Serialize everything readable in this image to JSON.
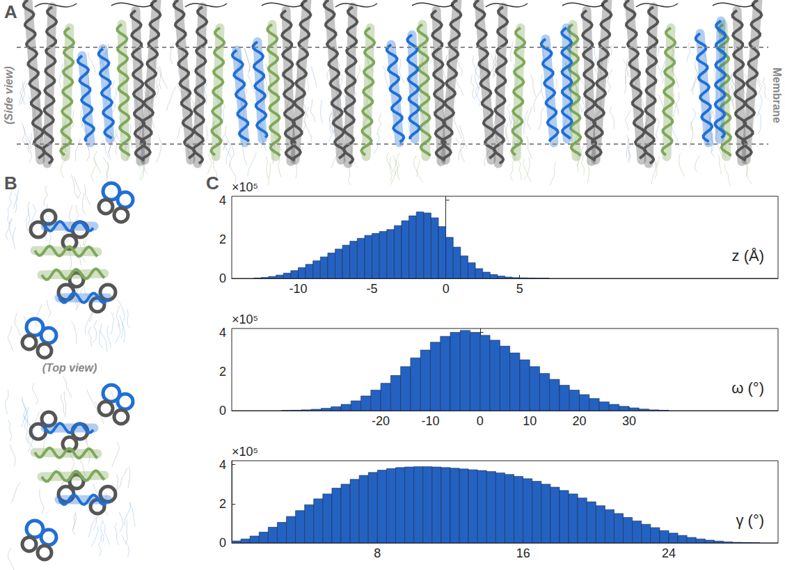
{
  "panels": {
    "A": {
      "label": "A",
      "side_view": "(Side view)",
      "membrane": "Membrane"
    },
    "B": {
      "label": "B",
      "top_view": "(Top view)"
    },
    "C": {
      "label": "C"
    }
  },
  "chart_data": [
    {
      "type": "histogram",
      "xlabel": "z (Å)",
      "y_scale_label": "×10⁵",
      "color": "#2462c2",
      "bins": [
        -13,
        -12.5,
        -12,
        -11.5,
        -11,
        -10.5,
        -10,
        -9.5,
        -9,
        -8.5,
        -8,
        -7.5,
        -7,
        -6.5,
        -6,
        -5.5,
        -5,
        -4.5,
        -4,
        -3.5,
        -3,
        -2.5,
        -2,
        -1.5,
        -1,
        -0.5,
        0,
        0.5,
        1,
        1.5,
        2,
        2.5,
        3,
        3.5,
        4,
        4.5,
        5,
        5.5,
        6,
        6.5,
        7
      ],
      "counts": [
        0.02,
        0.05,
        0.1,
        0.17,
        0.27,
        0.4,
        0.55,
        0.72,
        0.9,
        1.1,
        1.3,
        1.5,
        1.7,
        1.9,
        2.05,
        2.2,
        2.3,
        2.4,
        2.5,
        2.7,
        2.95,
        3.2,
        3.4,
        3.35,
        3.1,
        2.65,
        2.1,
        1.6,
        1.15,
        0.8,
        0.5,
        0.32,
        0.2,
        0.12,
        0.07,
        0.04,
        0.03,
        0.02,
        0.01,
        0.01
      ],
      "xlim": [
        -14.5,
        22.5
      ],
      "xticks": [
        -10,
        -5,
        0,
        5
      ],
      "ylim": [
        0,
        4.2
      ],
      "yticks": [
        0,
        2,
        4
      ],
      "grid": false
    },
    {
      "type": "histogram",
      "xlabel": "ω (°)",
      "y_scale_label": "×10⁵",
      "color": "#2462c2",
      "bins": [
        -40,
        -38,
        -36,
        -34,
        -32,
        -30,
        -28,
        -26,
        -24,
        -22,
        -20,
        -18,
        -16,
        -14,
        -12,
        -10,
        -8,
        -6,
        -4,
        -2,
        0,
        2,
        4,
        6,
        8,
        10,
        12,
        14,
        16,
        18,
        20,
        22,
        24,
        26,
        28,
        30,
        32,
        34,
        36,
        38
      ],
      "counts": [
        0.01,
        0.02,
        0.04,
        0.07,
        0.12,
        0.2,
        0.32,
        0.5,
        0.75,
        1.05,
        1.4,
        1.8,
        2.25,
        2.7,
        3.1,
        3.5,
        3.8,
        4.0,
        4.1,
        4.0,
        3.85,
        3.6,
        3.3,
        2.95,
        2.6,
        2.25,
        1.9,
        1.6,
        1.3,
        1.05,
        0.82,
        0.62,
        0.45,
        0.32,
        0.22,
        0.14,
        0.08,
        0.04,
        0.02
      ],
      "xlim": [
        -50,
        60
      ],
      "xticks": [
        -20,
        -10,
        0,
        10,
        20,
        30
      ],
      "ylim": [
        0,
        4.2
      ],
      "yticks": [
        0,
        2,
        4
      ],
      "grid": false
    },
    {
      "type": "histogram",
      "xlabel": "γ (°)",
      "y_scale_label": "×10⁵",
      "color": "#2462c2",
      "bins": [
        0,
        0.5,
        1,
        1.5,
        2,
        2.5,
        3,
        3.5,
        4,
        4.5,
        5,
        5.5,
        6,
        6.5,
        7,
        7.5,
        8,
        8.5,
        9,
        9.5,
        10,
        10.5,
        11,
        11.5,
        12,
        12.5,
        13,
        13.5,
        14,
        14.5,
        15,
        15.5,
        16,
        16.5,
        17,
        17.5,
        18,
        18.5,
        19,
        19.5,
        20,
        20.5,
        21,
        21.5,
        22,
        22.5,
        23,
        23.5,
        24,
        24.5,
        25,
        25.5,
        26,
        26.5,
        27,
        27.5,
        28,
        28.5,
        29
      ],
      "counts": [
        0.1,
        0.2,
        0.35,
        0.55,
        0.8,
        1.05,
        1.35,
        1.65,
        1.95,
        2.25,
        2.5,
        2.8,
        3.0,
        3.25,
        3.45,
        3.6,
        3.72,
        3.8,
        3.85,
        3.88,
        3.9,
        3.9,
        3.88,
        3.85,
        3.82,
        3.78,
        3.74,
        3.7,
        3.65,
        3.58,
        3.5,
        3.4,
        3.28,
        3.15,
        3.0,
        2.85,
        2.68,
        2.5,
        2.3,
        2.1,
        1.9,
        1.7,
        1.5,
        1.3,
        1.12,
        0.95,
        0.78,
        0.63,
        0.5,
        0.38,
        0.28,
        0.2,
        0.14,
        0.09,
        0.05,
        0.03,
        0.02,
        0.01
      ],
      "xlim": [
        0,
        30
      ],
      "xticks": [
        8,
        16,
        24
      ],
      "ylim": [
        0,
        4.2
      ],
      "yticks": [
        0,
        2,
        4
      ],
      "grid": false
    }
  ]
}
